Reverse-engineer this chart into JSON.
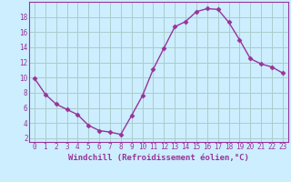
{
  "xlabel": "Windchill (Refroidissement éolien,°C)",
  "x": [
    0,
    1,
    2,
    3,
    4,
    5,
    6,
    7,
    8,
    9,
    10,
    11,
    12,
    13,
    14,
    15,
    16,
    17,
    18,
    19,
    20,
    21,
    22,
    23
  ],
  "y": [
    9.9,
    7.8,
    6.5,
    5.8,
    5.1,
    3.7,
    3.0,
    2.8,
    2.5,
    5.0,
    7.6,
    11.1,
    13.9,
    16.7,
    17.4,
    18.7,
    19.1,
    19.0,
    17.3,
    15.0,
    12.5,
    11.8,
    11.4,
    10.6
  ],
  "line_color": "#993399",
  "marker": "D",
  "marker_size": 2.5,
  "bg_color": "#cceeff",
  "grid_color": "#aacccc",
  "text_color": "#993399",
  "xlim_min": -0.5,
  "xlim_max": 23.5,
  "ylim_min": 1.5,
  "ylim_max": 20.0,
  "yticks": [
    2,
    4,
    6,
    8,
    10,
    12,
    14,
    16,
    18
  ],
  "xticks": [
    0,
    1,
    2,
    3,
    4,
    5,
    6,
    7,
    8,
    9,
    10,
    11,
    12,
    13,
    14,
    15,
    16,
    17,
    18,
    19,
    20,
    21,
    22,
    23
  ],
  "tick_fontsize": 5.5,
  "xlabel_fontsize": 6.5
}
